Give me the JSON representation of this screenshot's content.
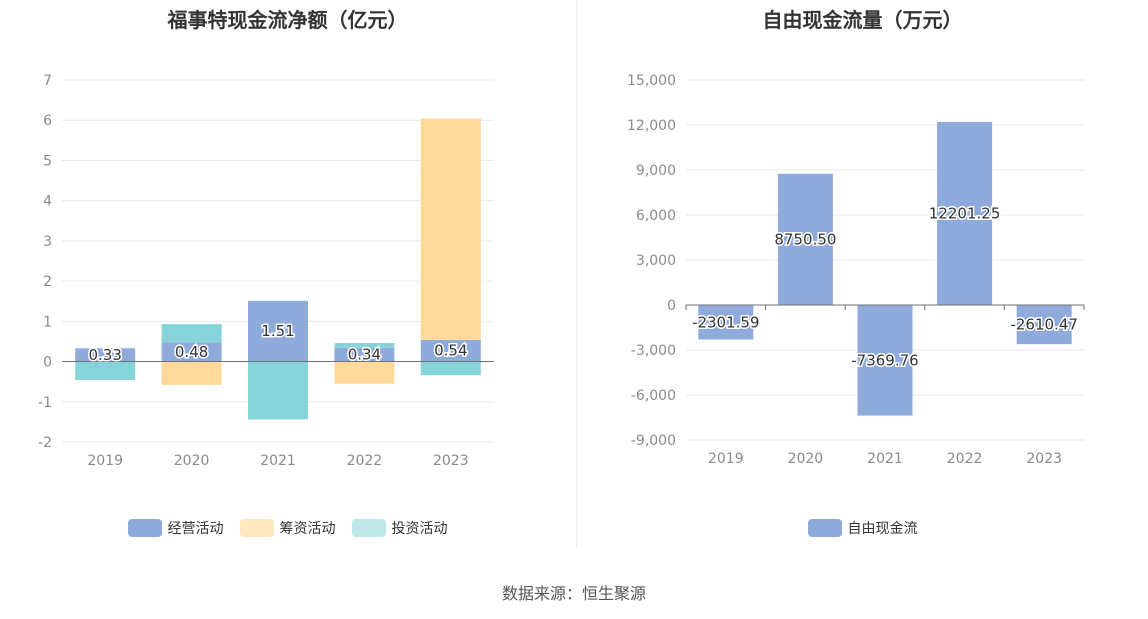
{
  "source_text": "数据来源：恒生聚源",
  "chart_data": [
    {
      "type": "bar",
      "stacked": true,
      "title": "福事特现金流净额（亿元）",
      "categories": [
        "2019",
        "2020",
        "2021",
        "2022",
        "2023"
      ],
      "ylim": [
        -2,
        7
      ],
      "yticks": [
        -2,
        -1,
        0,
        1,
        2,
        3,
        4,
        5,
        6,
        7
      ],
      "grid": true,
      "legend_position": "bottom",
      "label_series": 0,
      "series": [
        {
          "name": "经营活动",
          "color": "#8eabdb",
          "values": [
            0.33,
            0.48,
            1.51,
            0.34,
            0.54
          ],
          "labels": [
            "0.33",
            "0.48",
            "1.51",
            "0.34",
            "0.54"
          ]
        },
        {
          "name": "筹资活动",
          "color": "#ffd99a",
          "values": [
            0,
            -0.58,
            0,
            -0.55,
            5.5
          ]
        },
        {
          "name": "投资活动",
          "color": "#86d4d9",
          "values": [
            -0.46,
            0.45,
            -1.44,
            0.12,
            -0.34
          ]
        }
      ],
      "legend_colors": [
        "#8eabdb",
        "#ffe8bf",
        "#c0e8ea"
      ]
    },
    {
      "type": "bar",
      "title": "自由现金流量（万元）",
      "categories": [
        "2019",
        "2020",
        "2021",
        "2022",
        "2023"
      ],
      "ylim": [
        -9000,
        15000
      ],
      "yticks": [
        -9000,
        -6000,
        -3000,
        0,
        3000,
        6000,
        9000,
        12000,
        15000
      ],
      "ytick_labels": [
        "-9,000",
        "-6,000",
        "-3,000",
        "0",
        "3,000",
        "6,000",
        "9,000",
        "12,000",
        "15,000"
      ],
      "grid": true,
      "legend_position": "bottom",
      "label_series": 0,
      "series": [
        {
          "name": "自由现金流",
          "color": "#8eabdb",
          "values": [
            -2301.59,
            8750.5,
            -7369.76,
            12201.25,
            -2610.47
          ],
          "labels": [
            "-2301.59",
            "8750.50",
            "-7369.76",
            "12201.25",
            "-2610.47"
          ]
        }
      ],
      "legend_colors": [
        "#8eabdb"
      ]
    }
  ]
}
